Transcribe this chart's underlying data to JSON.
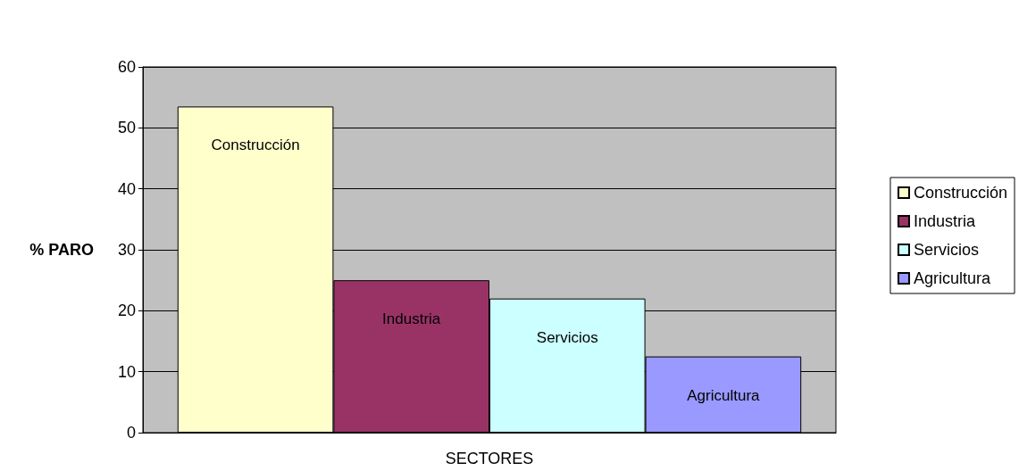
{
  "chart_data": {
    "type": "bar",
    "xlabel": "SECTORES",
    "ylabel": "% PARO",
    "categories": [
      null
    ],
    "series": [
      {
        "name": "Construcción",
        "color": "#ffffcc",
        "values": [
          53.5
        ]
      },
      {
        "name": "Industria",
        "color": "#993366",
        "values": [
          25
        ]
      },
      {
        "name": "Servicios",
        "color": "#ccffff",
        "values": [
          22
        ]
      },
      {
        "name": "Agricultura",
        "color": "#9999ff",
        "values": [
          12.5
        ]
      }
    ],
    "ylim": [
      0,
      60
    ],
    "yticks": [
      0,
      10,
      20,
      30,
      40,
      50,
      60
    ],
    "grid": "y",
    "legend": "right"
  }
}
